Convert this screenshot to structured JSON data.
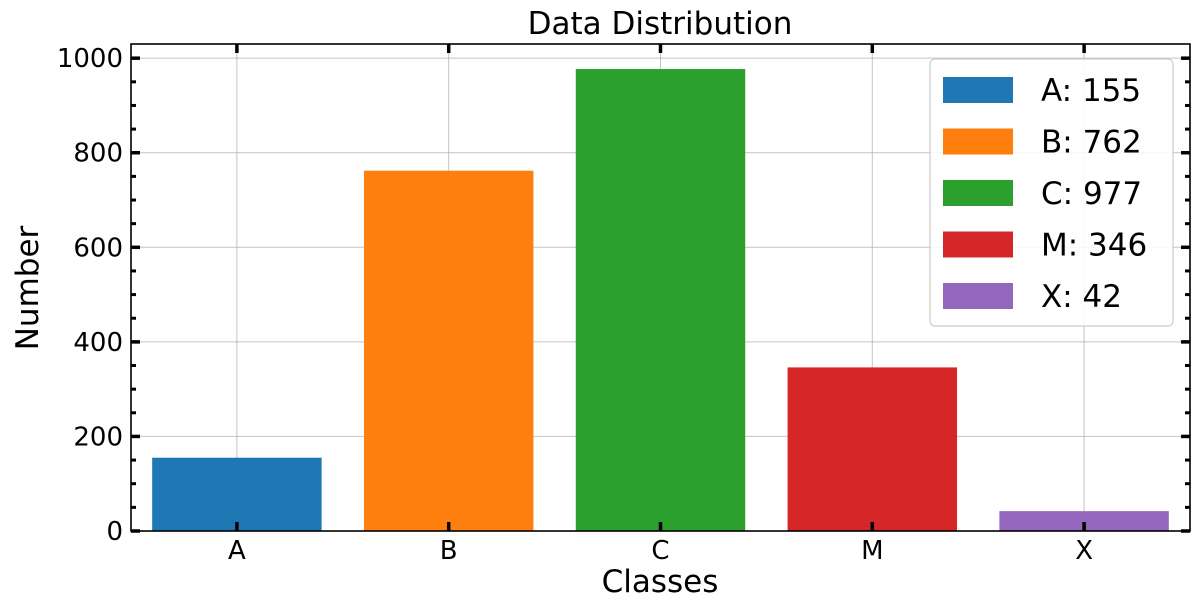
{
  "chart_data": {
    "type": "bar",
    "title": "Data Distribution",
    "xlabel": "Classes",
    "ylabel": "Number",
    "categories": [
      "A",
      "B",
      "C",
      "M",
      "X"
    ],
    "values": [
      155,
      762,
      977,
      346,
      42
    ],
    "colors": [
      "#1f77b4",
      "#ff7f0e",
      "#2ca02c",
      "#d62728",
      "#9467bd"
    ],
    "ylim": [
      0,
      1030
    ],
    "yticks": [
      0,
      200,
      400,
      600,
      800,
      1000
    ],
    "grid": true,
    "legend": {
      "placement": "top-right",
      "entries": [
        "A: 155",
        "B: 762",
        "C: 977",
        "M: 346",
        "X: 42"
      ]
    }
  }
}
